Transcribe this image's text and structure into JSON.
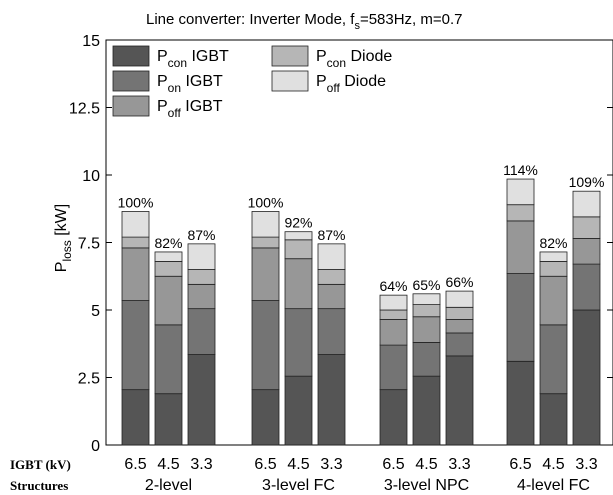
{
  "chart_data": {
    "type": "bar",
    "stacked": true,
    "title": {
      "main": "Line converter: Inverter Mode, f",
      "sub": "s",
      "rest": "=583Hz, m=0.7"
    },
    "ylabel": {
      "main": "P",
      "sub": "loss",
      "unit": " [kW]"
    },
    "ylim": [
      0,
      15
    ],
    "yticks": [
      "0",
      "2.5",
      "5",
      "7.5",
      "10",
      "12.5",
      "15"
    ],
    "row_labels": {
      "igbt": "IGBT (kV)",
      "structures": "Structures"
    },
    "groups": [
      {
        "name": "2-level",
        "bars": [
          {
            "igbt": "6.5",
            "label": "100%",
            "values": [
              2.05,
              3.3,
              1.95,
              0.4,
              0.95
            ]
          },
          {
            "igbt": "4.5",
            "label": "82%",
            "values": [
              1.9,
              2.55,
              1.8,
              0.55,
              0.35
            ]
          },
          {
            "igbt": "3.3",
            "label": "87%",
            "values": [
              3.35,
              1.7,
              0.9,
              0.55,
              0.95
            ]
          }
        ]
      },
      {
        "name": "3-level FC",
        "bars": [
          {
            "igbt": "6.5",
            "label": "100%",
            "values": [
              2.05,
              3.3,
              1.95,
              0.4,
              0.95
            ]
          },
          {
            "igbt": "4.5",
            "label": "92%",
            "values": [
              2.55,
              2.5,
              1.85,
              0.7,
              0.3
            ]
          },
          {
            "igbt": "3.3",
            "label": "87%",
            "values": [
              3.35,
              1.7,
              0.9,
              0.55,
              0.95
            ]
          }
        ]
      },
      {
        "name": "3-level NPC",
        "bars": [
          {
            "igbt": "6.5",
            "label": "64%",
            "values": [
              2.05,
              1.65,
              0.95,
              0.35,
              0.55
            ]
          },
          {
            "igbt": "4.5",
            "label": "65%",
            "values": [
              2.55,
              1.25,
              0.95,
              0.45,
              0.4
            ]
          },
          {
            "igbt": "3.3",
            "label": "66%",
            "values": [
              3.3,
              0.85,
              0.5,
              0.45,
              0.6
            ]
          }
        ]
      },
      {
        "name": "4-level FC",
        "bars": [
          {
            "igbt": "6.5",
            "label": "114%",
            "values": [
              3.1,
              3.25,
              1.95,
              0.6,
              0.95
            ]
          },
          {
            "igbt": "4.5",
            "label": "82%",
            "values": [
              1.9,
              2.55,
              1.8,
              0.55,
              0.35
            ]
          },
          {
            "igbt": "3.3",
            "label": "109%",
            "values": [
              5.0,
              1.7,
              0.95,
              0.8,
              0.95
            ]
          }
        ]
      }
    ],
    "series": [
      {
        "base": "P",
        "sub": "con",
        "device": "IGBT",
        "color": "#555555"
      },
      {
        "base": "P",
        "sub": "on",
        "device": "IGBT",
        "color": "#747474"
      },
      {
        "base": "P",
        "sub": "off",
        "device": "IGBT",
        "color": "#979797"
      },
      {
        "base": "P",
        "sub": "con",
        "device": "Diode",
        "color": "#b6b6b6"
      },
      {
        "base": "P",
        "sub": "off",
        "device": "Diode",
        "color": "#e0e0e0"
      }
    ]
  }
}
